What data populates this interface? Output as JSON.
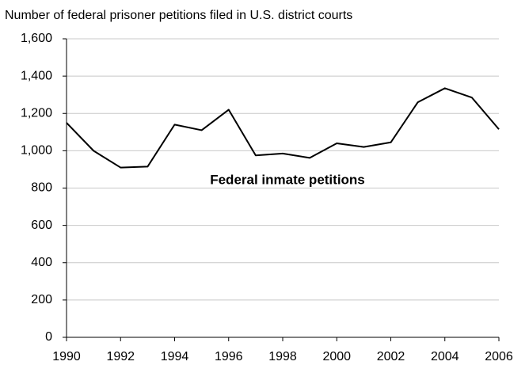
{
  "chart_data": {
    "type": "line",
    "title": "Number of federal prisoner petitions filed in U.S. district courts",
    "annotation": "Federal inmate petitions",
    "x": [
      1990,
      1991,
      1992,
      1993,
      1994,
      1995,
      1996,
      1997,
      1998,
      1999,
      2000,
      2001,
      2002,
      2003,
      2004,
      2005,
      2006
    ],
    "values": [
      1150,
      1000,
      910,
      915,
      1140,
      1110,
      1220,
      975,
      985,
      962,
      1040,
      1020,
      1045,
      1260,
      1335,
      1285,
      1115
    ],
    "color": "#000000",
    "xlim": [
      1990,
      2006
    ],
    "xticks": [
      1990,
      1992,
      1994,
      1996,
      1998,
      2000,
      2002,
      2004,
      2006
    ],
    "ylim": [
      0,
      1600
    ],
    "yticks": [
      0,
      200,
      400,
      600,
      800,
      {
        "value": 1000,
        "label": "1,000"
      },
      {
        "value": 1200,
        "label": "1,200"
      },
      {
        "value": 1400,
        "label": "1,400"
      },
      {
        "value": 1600,
        "label": "1,600"
      }
    ],
    "grid": true
  }
}
